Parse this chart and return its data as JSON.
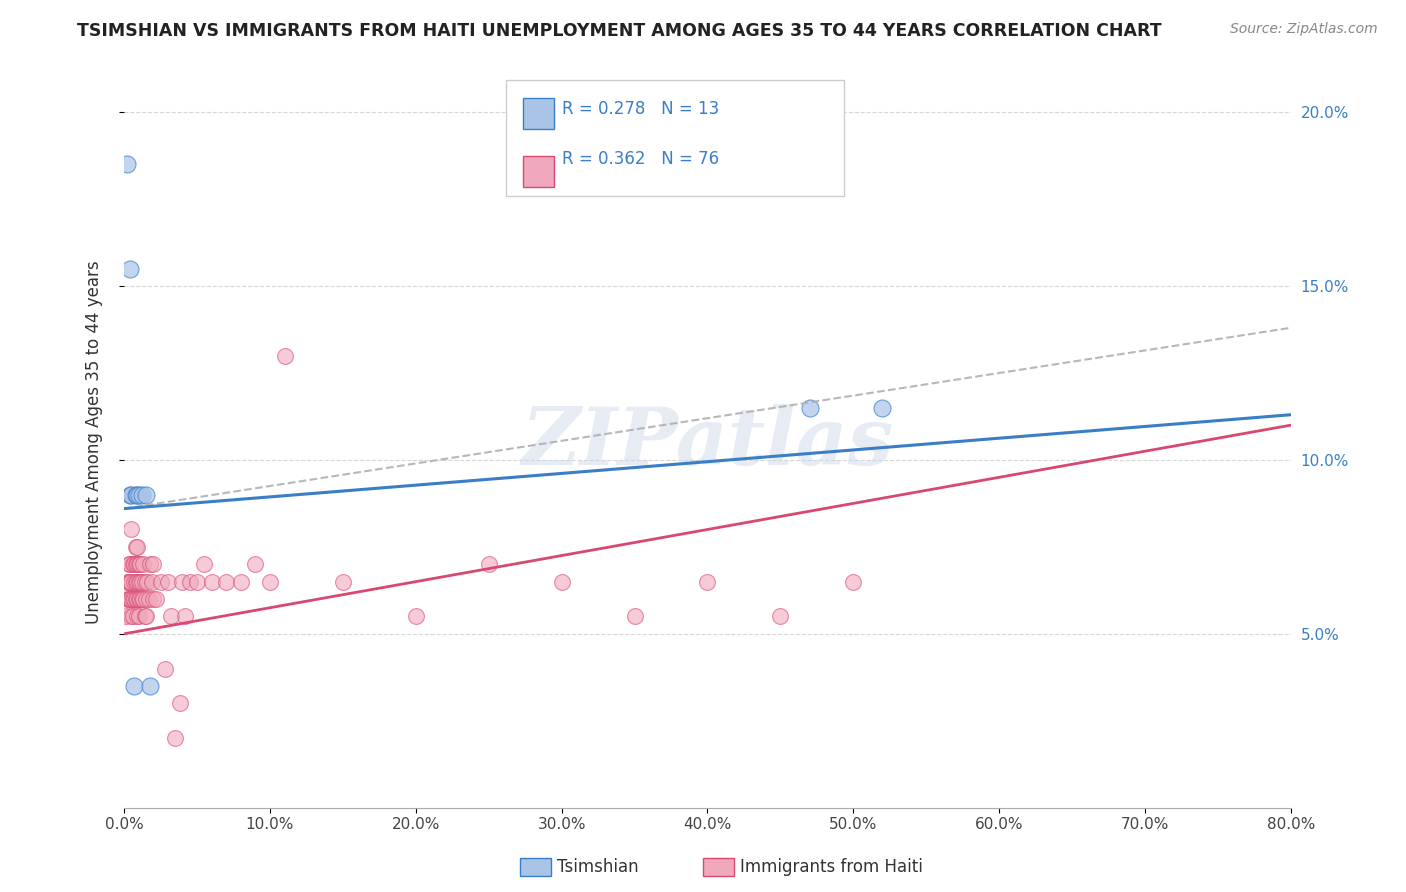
{
  "title": "TSIMSHIAN VS IMMIGRANTS FROM HAITI UNEMPLOYMENT AMONG AGES 35 TO 44 YEARS CORRELATION CHART",
  "source": "Source: ZipAtlas.com",
  "ylabel": "Unemployment Among Ages 35 to 44 years",
  "watermark": "ZIPatlas",
  "tsimshian_x": [
    0.002,
    0.004,
    0.004,
    0.005,
    0.007,
    0.008,
    0.009,
    0.01,
    0.012,
    0.015,
    0.018,
    0.47,
    0.52
  ],
  "tsimshian_y": [
    0.185,
    0.155,
    0.09,
    0.09,
    0.035,
    0.09,
    0.09,
    0.09,
    0.09,
    0.09,
    0.035,
    0.115,
    0.115
  ],
  "haiti_x": [
    0.001,
    0.002,
    0.002,
    0.003,
    0.003,
    0.003,
    0.004,
    0.004,
    0.004,
    0.005,
    0.005,
    0.005,
    0.005,
    0.005,
    0.006,
    0.006,
    0.006,
    0.007,
    0.007,
    0.007,
    0.008,
    0.008,
    0.008,
    0.008,
    0.009,
    0.009,
    0.009,
    0.009,
    0.009,
    0.01,
    0.01,
    0.01,
    0.01,
    0.011,
    0.011,
    0.011,
    0.012,
    0.012,
    0.013,
    0.013,
    0.014,
    0.014,
    0.015,
    0.015,
    0.016,
    0.017,
    0.018,
    0.019,
    0.02,
    0.02,
    0.022,
    0.025,
    0.028,
    0.03,
    0.032,
    0.035,
    0.038,
    0.04,
    0.042,
    0.045,
    0.05,
    0.055,
    0.06,
    0.07,
    0.08,
    0.09,
    0.1,
    0.11,
    0.15,
    0.2,
    0.25,
    0.3,
    0.35,
    0.4,
    0.45,
    0.5
  ],
  "haiti_y": [
    0.055,
    0.065,
    0.06,
    0.065,
    0.06,
    0.07,
    0.06,
    0.065,
    0.07,
    0.055,
    0.06,
    0.065,
    0.08,
    0.09,
    0.055,
    0.06,
    0.07,
    0.06,
    0.065,
    0.07,
    0.06,
    0.065,
    0.07,
    0.075,
    0.055,
    0.06,
    0.065,
    0.07,
    0.075,
    0.055,
    0.06,
    0.065,
    0.07,
    0.06,
    0.065,
    0.07,
    0.06,
    0.065,
    0.06,
    0.07,
    0.055,
    0.065,
    0.055,
    0.06,
    0.065,
    0.06,
    0.07,
    0.065,
    0.06,
    0.07,
    0.06,
    0.065,
    0.04,
    0.065,
    0.055,
    0.02,
    0.03,
    0.065,
    0.055,
    0.065,
    0.065,
    0.07,
    0.065,
    0.065,
    0.065,
    0.07,
    0.065,
    0.13,
    0.065,
    0.055,
    0.07,
    0.065,
    0.055,
    0.065,
    0.055,
    0.065
  ],
  "tsimshian_scatter_color": "#aac4e8",
  "tsimshian_line_color": "#3a7ec8",
  "haiti_scatter_color": "#f0a8bc",
  "haiti_line_color": "#d84870",
  "R_tsimshian": 0.278,
  "N_tsimshian": 13,
  "R_haiti": 0.362,
  "N_haiti": 76,
  "xmin": 0.0,
  "xmax": 0.8,
  "ymin": 0.0,
  "ymax": 0.21,
  "xtick_labels": [
    "0.0%",
    "10.0%",
    "20.0%",
    "30.0%",
    "40.0%",
    "50.0%",
    "60.0%",
    "70.0%",
    "80.0%"
  ],
  "xtick_vals": [
    0.0,
    0.1,
    0.2,
    0.3,
    0.4,
    0.5,
    0.6,
    0.7,
    0.8
  ],
  "ytick_labels_right": [
    "5.0%",
    "10.0%",
    "15.0%",
    "20.0%"
  ],
  "ytick_vals": [
    0.05,
    0.1,
    0.15,
    0.2
  ],
  "legend_tsimshian": "Tsimshian",
  "legend_haiti": "Immigrants from Haiti",
  "bg_color": "#ffffff",
  "grid_color": "#cccccc",
  "watermark_color": "#c8d4e8",
  "watermark_alpha": 0.45,
  "blue_line_y0": 0.086,
  "blue_line_y1": 0.113,
  "pink_line_y0": 0.05,
  "pink_line_y1": 0.11,
  "dashed_line_y0": 0.086,
  "dashed_line_y1": 0.138
}
